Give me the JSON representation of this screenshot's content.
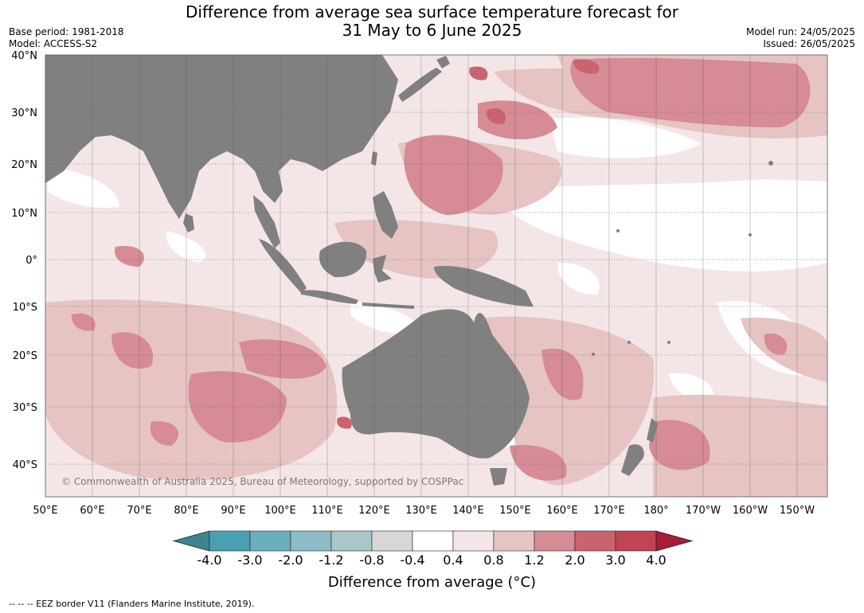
{
  "header": {
    "title_line1": "Difference from average sea surface temperature forecast for",
    "title_line2": "31 May to 6 June 2025",
    "base_period": "Base period: 1981-2018",
    "model": "Model: ACCESS-S2",
    "model_run": "Model run: 24/05/2025",
    "issued": "Issued: 26/05/2025"
  },
  "map": {
    "latitude_labels": [
      "40°N",
      "30°N",
      "20°N",
      "10°N",
      "0°",
      "10°S",
      "20°S",
      "30°S",
      "40°S"
    ],
    "longitude_labels": [
      "50°E",
      "60°E",
      "70°E",
      "80°E",
      "90°E",
      "100°E",
      "110°E",
      "120°E",
      "130°E",
      "140°E",
      "150°E",
      "160°E",
      "170°E",
      "180°",
      "170°W",
      "160°W",
      "150°W"
    ],
    "credit": "© Commonwealth of Australia 2025, Bureau of Meteorology, supported by COSPPac",
    "colors": {
      "land": "#808080",
      "ocean_neutral": "#ffffff",
      "grid": "#555555"
    }
  },
  "colorbar": {
    "tick_labels": [
      "-4.0",
      "-3.0",
      "-2.0",
      "-1.2",
      "-0.8",
      "-0.4",
      "0.4",
      "0.8",
      "1.2",
      "2.0",
      "3.0",
      "4.0"
    ],
    "colors": [
      "#3d8590",
      "#4aa0b3",
      "#6aafbd",
      "#8ebcc6",
      "#a9c6ca",
      "#d7d7d7",
      "#ffffff",
      "#f4e6e6",
      "#e5c4c3",
      "#d68b95",
      "#c9646f",
      "#c04454",
      "#a81c35"
    ],
    "title": "Difference from average (°C)"
  },
  "footnote": "--  --  -- EEZ border V11 (Flanders Marine Institute, 2019)."
}
